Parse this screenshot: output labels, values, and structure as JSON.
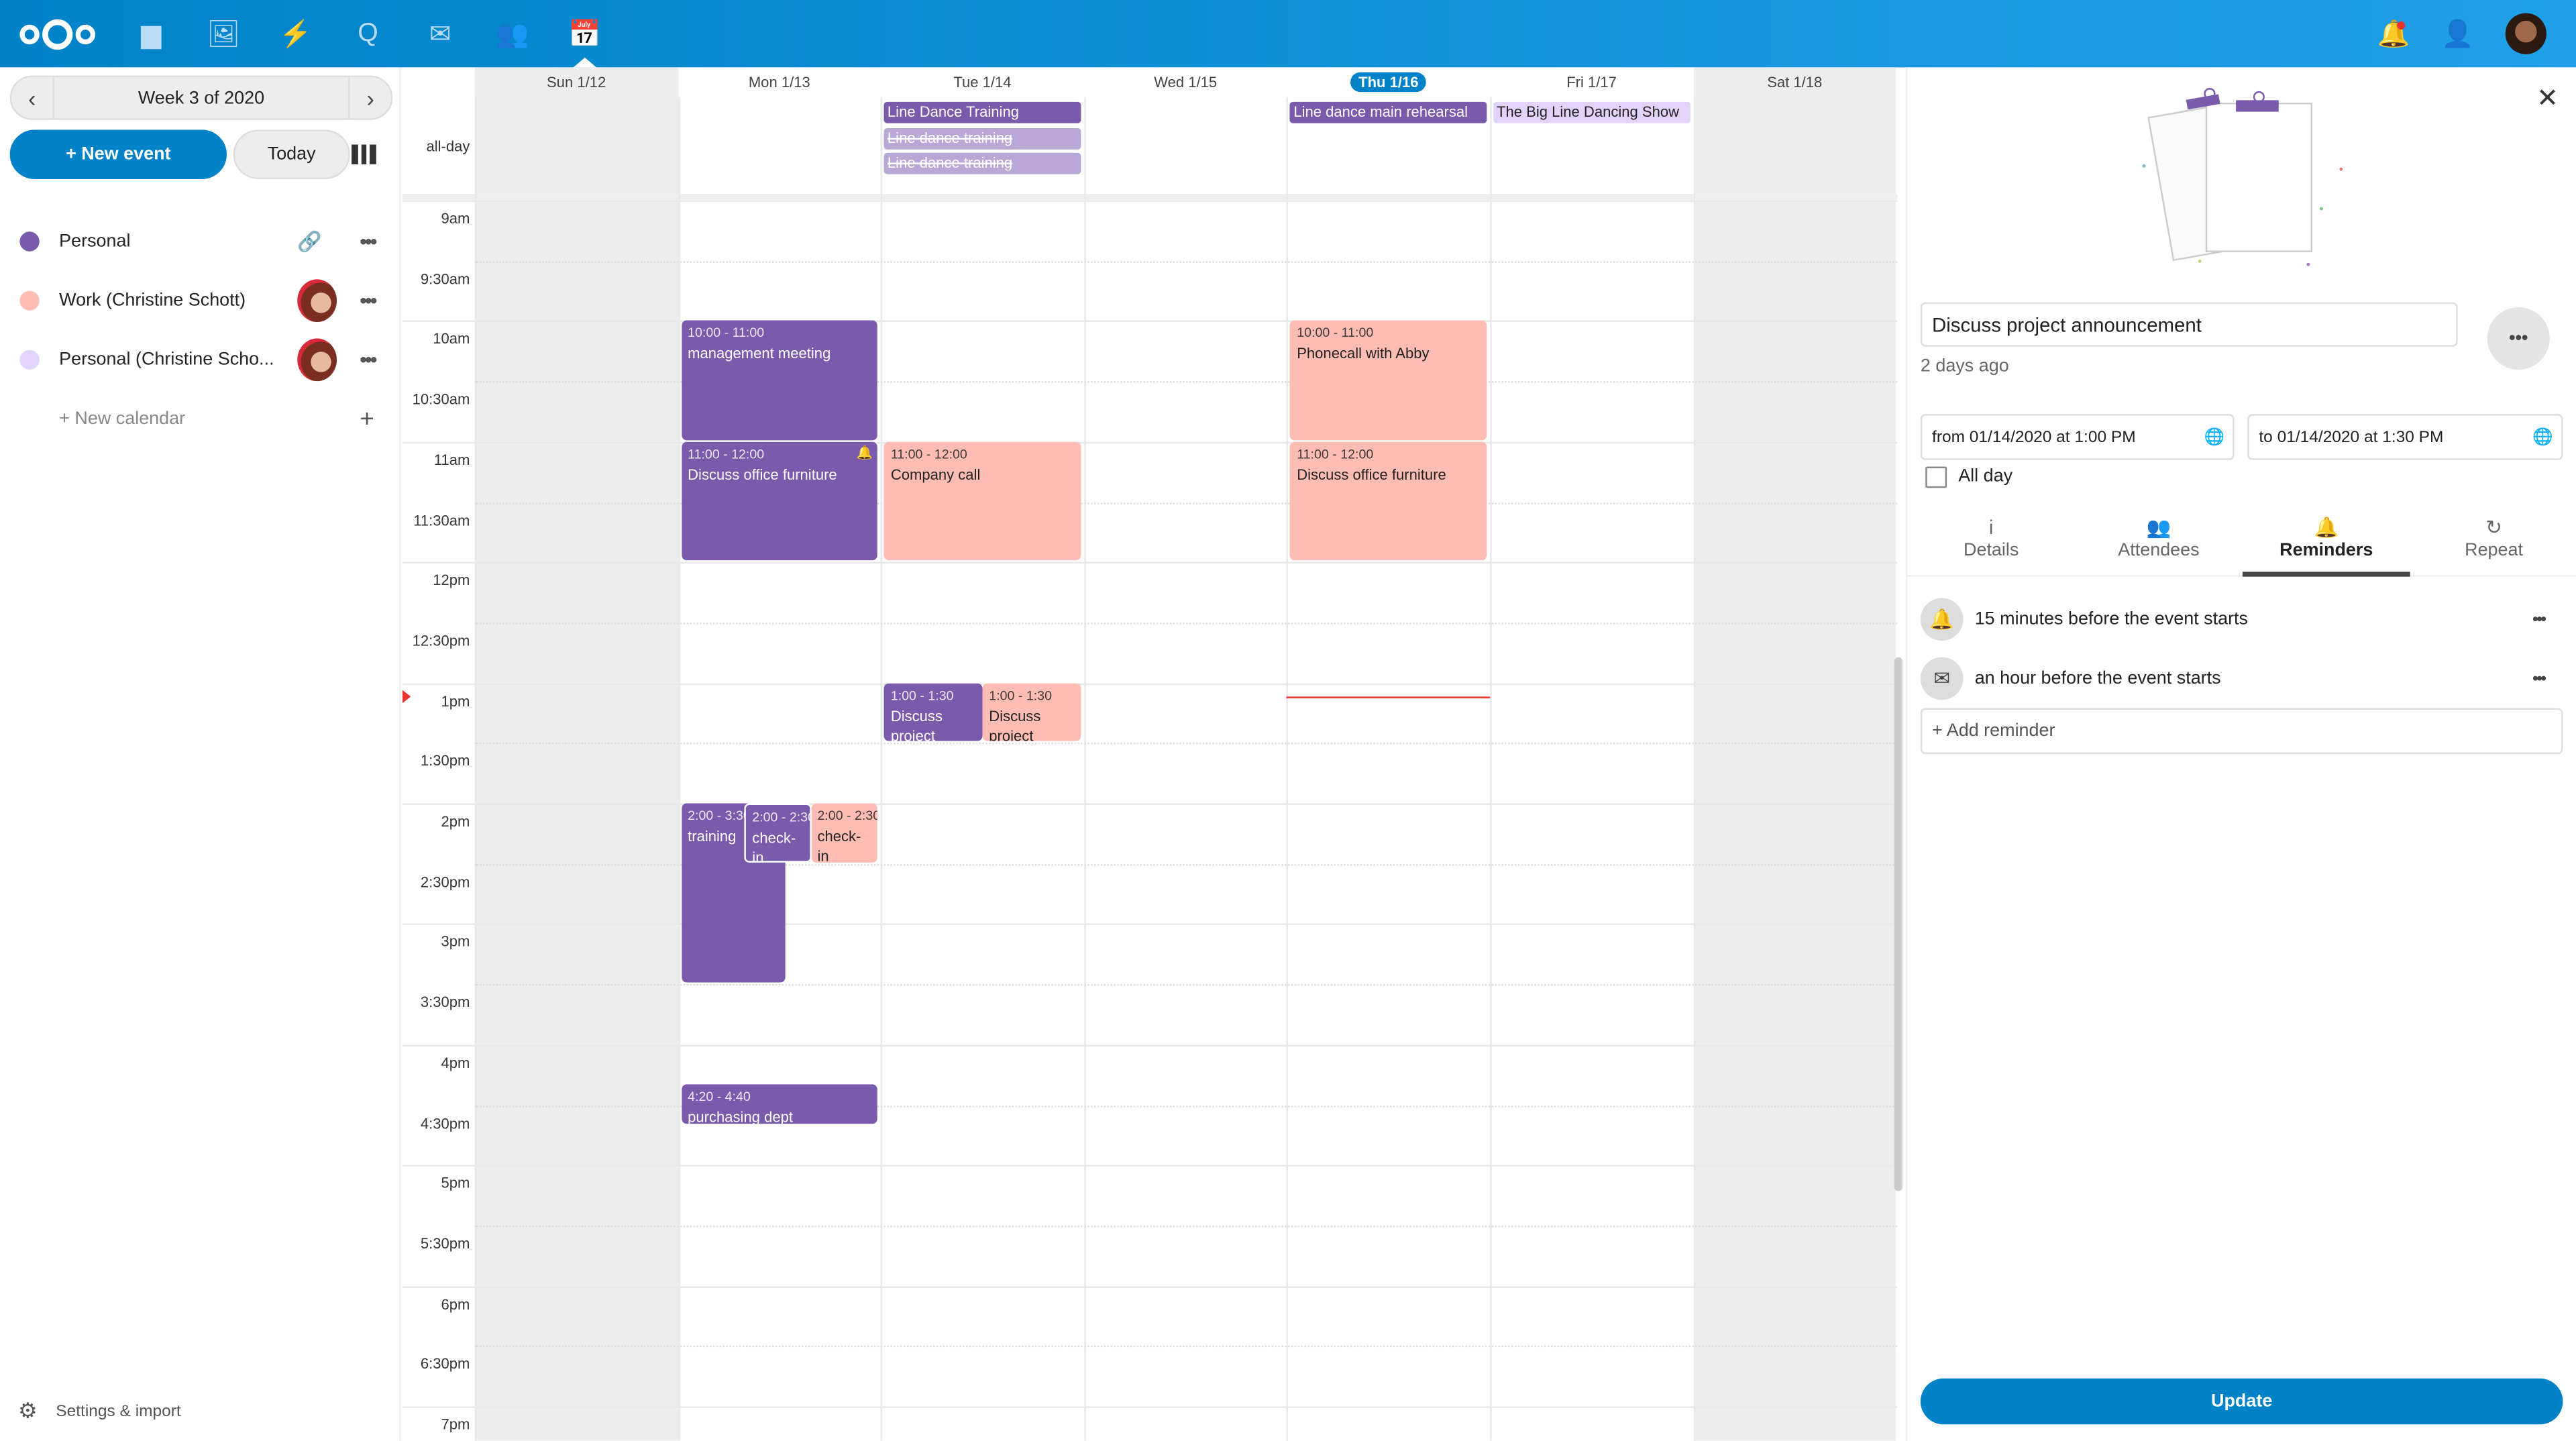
{
  "header": {
    "apps": [
      {
        "name": "files-icon",
        "glyph": "▆"
      },
      {
        "name": "photos-icon",
        "glyph": "🖼"
      },
      {
        "name": "activity-icon",
        "glyph": "⚡"
      },
      {
        "name": "talk-icon",
        "glyph": "Q"
      },
      {
        "name": "mail-icon",
        "glyph": "✉"
      },
      {
        "name": "contacts-icon",
        "glyph": "👥"
      },
      {
        "name": "calendar-icon",
        "glyph": "📅"
      }
    ]
  },
  "sidebar": {
    "week_label": "Week 3 of 2020",
    "new_event": "+ New event",
    "today": "Today",
    "calendars": [
      {
        "label": "Personal",
        "color": "#795aab",
        "shared": "link"
      },
      {
        "label": "Work (Christine Schott)",
        "color": "#fdbdb4",
        "shared": "avatar"
      },
      {
        "label": "Personal (Christine Scho...",
        "color": "#e2d3fb",
        "shared": "avatar"
      }
    ],
    "new_calendar": "+ New calendar",
    "settings": "Settings & import"
  },
  "calendar": {
    "days": [
      "Sun 1/12",
      "Mon 1/13",
      "Tue 1/14",
      "Wed 1/15",
      "Thu 1/16",
      "Fri 1/17",
      "Sat 1/18"
    ],
    "today_index": 4,
    "allday_label": "all-day",
    "times": [
      "9am",
      "9:30am",
      "10am",
      "10:30am",
      "11am",
      "11:30am",
      "12pm",
      "12:30pm",
      "1pm",
      "1:30pm",
      "2pm",
      "2:30pm",
      "3pm",
      "3:30pm",
      "4pm",
      "4:30pm",
      "5pm",
      "5:30pm",
      "6pm",
      "6:30pm",
      "7pm"
    ],
    "allday_events": [
      {
        "day": 2,
        "title": "Line Dance Training",
        "style": "purple"
      },
      {
        "day": 2,
        "title": "Line dance training",
        "style": "cancelled"
      },
      {
        "day": 2,
        "title": "Line dance training",
        "style": "cancelled"
      },
      {
        "day": 4,
        "title": "Line dance main rehearsal",
        "style": "purple"
      },
      {
        "day": 5,
        "title": "The Big Line Dancing Show",
        "style": "lavender"
      }
    ],
    "events": [
      {
        "day": 1,
        "start": "10:00",
        "end": "11:00",
        "time": "10:00 - 11:00",
        "title": "management meeting",
        "color": "purple"
      },
      {
        "day": 1,
        "start": "11:00",
        "end": "12:00",
        "time": "11:00 - 12:00",
        "title": "Discuss office furniture",
        "color": "purple",
        "bell": true
      },
      {
        "day": 2,
        "start": "11:00",
        "end": "12:00",
        "time": "11:00 - 12:00",
        "title": "Company call",
        "color": "pink"
      },
      {
        "day": 4,
        "start": "10:00",
        "end": "11:00",
        "time": "10:00 - 11:00",
        "title": "Phonecall with Abby",
        "color": "pink"
      },
      {
        "day": 4,
        "start": "11:00",
        "end": "12:00",
        "time": "11:00 - 12:00",
        "title": "Discuss office furniture",
        "color": "pink"
      },
      {
        "day": 2,
        "start": "13:00",
        "end": "13:30",
        "time": "1:00 - 1:30",
        "title": "Discuss project announcement",
        "color": "purple"
      },
      {
        "day": 2,
        "start": "13:00",
        "end": "13:30",
        "time": "1:00 - 1:30",
        "title": "Discuss project",
        "color": "pink"
      },
      {
        "day": 1,
        "start": "14:00",
        "end": "15:30",
        "time": "2:00 - 3:30",
        "title": "training",
        "color": "purple"
      },
      {
        "day": 1,
        "start": "14:00",
        "end": "14:30",
        "time": "2:00 - 2:30",
        "title": "check-in",
        "color": "purple"
      },
      {
        "day": 1,
        "start": "14:00",
        "end": "14:30",
        "time": "2:00 - 2:30",
        "title": "check-in",
        "color": "pink"
      },
      {
        "day": 1,
        "start": "16:20",
        "end": "16:40",
        "time": "4:20 - 4:40",
        "title": "purchasing dept",
        "color": "purple"
      }
    ],
    "now": "13:07",
    "colors": {
      "purple": "#795aab",
      "pink": "#fdbdb4",
      "lavender": "#e2d3fb",
      "now": "#e9322d"
    }
  },
  "panel": {
    "title": "Discuss project announcement",
    "modified": "2 days ago",
    "from": "from 01/14/2020 at 1:00 PM",
    "to": "to 01/14/2020 at 1:30 PM",
    "allday": "All day",
    "allday_checked": false,
    "tabs": [
      {
        "label": "Details",
        "icon": "i"
      },
      {
        "label": "Attendees",
        "icon": "👥"
      },
      {
        "label": "Reminders",
        "icon": "🔔"
      },
      {
        "label": "Repeat",
        "icon": "↻"
      }
    ],
    "active_tab": 2,
    "reminders": [
      {
        "icon": "bell-icon",
        "glyph": "🔔",
        "text": "15 minutes before the event starts"
      },
      {
        "icon": "mail-icon",
        "glyph": "✉",
        "text": "an hour before the event starts"
      }
    ],
    "add_reminder": "+ Add reminder",
    "update": "Update"
  }
}
